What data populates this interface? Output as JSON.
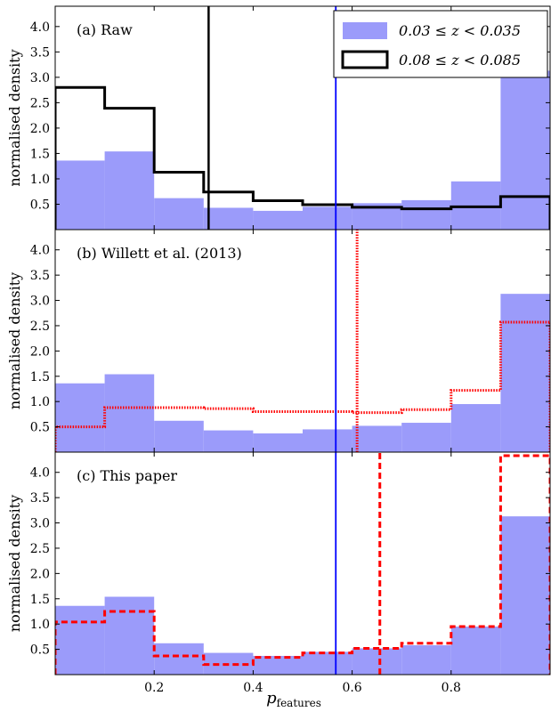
{
  "chart_data": {
    "type": "histogram",
    "x": {
      "label_main": "p",
      "label_sub": "features",
      "lim": [
        0,
        1
      ],
      "ticks": [
        0.2,
        0.4,
        0.6,
        0.8
      ],
      "tick_labels": [
        "0.2",
        "0.4",
        "0.6",
        "0.8"
      ]
    },
    "y": {
      "label": "normalised density",
      "lim": [
        0,
        4.4
      ],
      "ticks": [
        0.5,
        1.0,
        1.5,
        2.0,
        2.5,
        3.0,
        3.5,
        4.0
      ],
      "tick_labels": [
        "0.5",
        "1.0",
        "1.5",
        "2.0",
        "2.5",
        "3.0",
        "3.5",
        "4.0"
      ]
    },
    "bin_edges": [
      0,
      0.1,
      0.2,
      0.3,
      0.4,
      0.5,
      0.6,
      0.7,
      0.8,
      0.9,
      1.0
    ],
    "colors": {
      "low_z_fill": "#9b9bfa",
      "high_z_raw_line": "#000000",
      "threshold_line": "#0000ff",
      "red_line": "#ff0000"
    },
    "legend": {
      "position": "top-right",
      "entries": [
        {
          "label": "0.03 ≤ z < 0.035",
          "style": "filled"
        },
        {
          "label": "0.08 ≤ z < 0.085",
          "style": "step-black"
        }
      ]
    },
    "panels": [
      {
        "label": "(a) Raw",
        "filled": [
          1.36,
          1.54,
          0.62,
          0.43,
          0.37,
          0.45,
          0.52,
          0.58,
          0.95,
          3.13
        ],
        "step": {
          "style": "solid",
          "values": [
            2.8,
            2.39,
            1.13,
            0.74,
            0.57,
            0.49,
            0.44,
            0.41,
            0.45,
            0.65
          ]
        },
        "vlines": [
          {
            "x": 0.31,
            "style": "black"
          },
          {
            "x": 0.567,
            "style": "blue"
          }
        ]
      },
      {
        "label": "(b) Willett et al. (2013)",
        "filled": [
          1.36,
          1.54,
          0.62,
          0.43,
          0.37,
          0.45,
          0.52,
          0.58,
          0.95,
          3.13
        ],
        "step": {
          "style": "dotted",
          "values": [
            0.5,
            0.88,
            0.88,
            0.86,
            0.8,
            0.8,
            0.78,
            0.84,
            1.22,
            2.57
          ]
        },
        "spike": {
          "x": 0.61,
          "y": 4.4
        },
        "vlines": [
          {
            "x": 0.567,
            "style": "blue"
          }
        ]
      },
      {
        "label": "(c) This paper",
        "filled": [
          1.36,
          1.54,
          0.62,
          0.43,
          0.37,
          0.45,
          0.52,
          0.58,
          0.95,
          3.13
        ],
        "step": {
          "style": "dashed",
          "values": [
            1.04,
            1.25,
            0.37,
            0.2,
            0.34,
            0.43,
            0.52,
            0.62,
            0.95,
            4.33
          ]
        },
        "spike": {
          "x": 0.656,
          "y": 4.4
        },
        "vlines": [
          {
            "x": 0.567,
            "style": "blue"
          }
        ]
      }
    ]
  }
}
